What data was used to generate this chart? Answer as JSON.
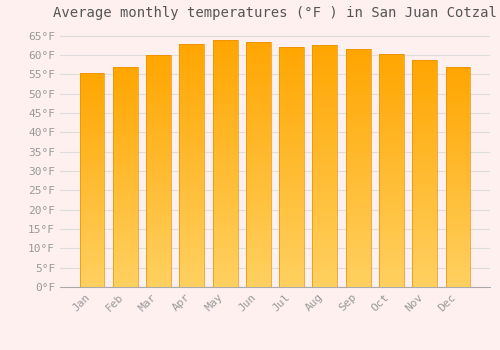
{
  "title": "Average monthly temperatures (°F ) in San Juan Cotzal",
  "months": [
    "Jan",
    "Feb",
    "Mar",
    "Apr",
    "May",
    "Jun",
    "Jul",
    "Aug",
    "Sep",
    "Oct",
    "Nov",
    "Dec"
  ],
  "values": [
    55.4,
    57.0,
    60.1,
    62.8,
    64.0,
    63.5,
    62.2,
    62.6,
    61.5,
    60.4,
    58.6,
    56.8
  ],
  "bar_color_top": "#FFA500",
  "bar_color_bottom": "#FFD060",
  "bar_edge_color": "#E89000",
  "background_color": "#FFF0F0",
  "plot_bg_color": "#FFF0F0",
  "grid_color": "#DDDDDD",
  "ytick_step": 5,
  "ymin": 0,
  "ymax": 67,
  "title_fontsize": 10,
  "tick_fontsize": 8,
  "tick_color": "#999999",
  "title_color": "#555555"
}
